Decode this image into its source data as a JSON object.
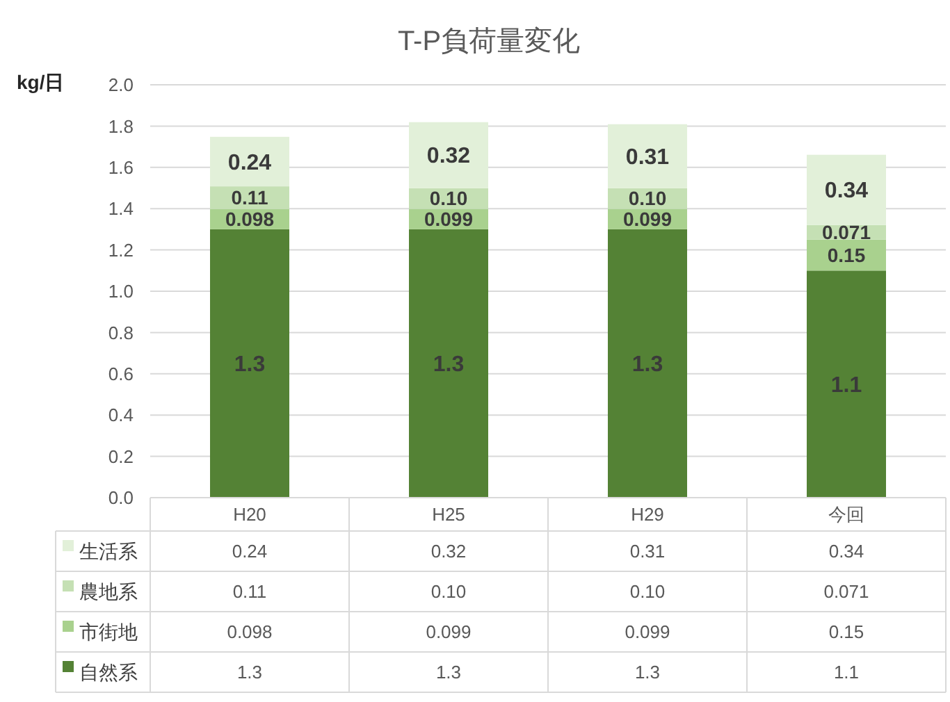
{
  "chart_data": {
    "type": "bar",
    "title": "T-P負荷量変化",
    "ylabel": "kg/日",
    "categories": [
      "H20",
      "H25",
      "H29",
      "今回"
    ],
    "stacked": true,
    "ylim": [
      0,
      2
    ],
    "yticks": [
      "0.0",
      "0.2",
      "0.4",
      "0.6",
      "0.8",
      "1.0",
      "1.2",
      "1.4",
      "1.6",
      "1.8",
      "2.0"
    ],
    "grid": "y",
    "legend": "bottom left",
    "series": [
      {
        "name": "自然系",
        "color": "#548235",
        "values": [
          1.3,
          1.3,
          1.3,
          1.1
        ],
        "value_labels": [
          "1.3",
          "1.3",
          "1.3",
          "1.1"
        ]
      },
      {
        "name": "市街地",
        "color": "#a9d18e",
        "values": [
          0.098,
          0.099,
          0.099,
          0.15
        ],
        "value_labels": [
          "0.098",
          "0.099",
          "0.099",
          "0.15"
        ]
      },
      {
        "name": "農地系",
        "color": "#c5e0b4",
        "values": [
          0.11,
          0.1,
          0.1,
          0.071
        ],
        "value_labels": [
          "0.11",
          "0.10",
          "0.10",
          "0.071"
        ]
      },
      {
        "name": "生活系",
        "color": "#e2f0d9",
        "values": [
          0.24,
          0.32,
          0.31,
          0.34
        ],
        "value_labels": [
          "0.24",
          "0.32",
          "0.31",
          "0.34"
        ]
      }
    ]
  }
}
